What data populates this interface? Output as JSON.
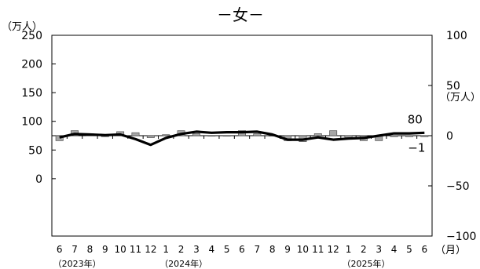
{
  "chart_data": {
    "type": "bar+line",
    "title": "－女－",
    "ylabel_left": "（万人）",
    "ylabel_right": "（万人）",
    "xunit_label": "（月）",
    "left_axis": {
      "ylim": [
        -100,
        250
      ],
      "ticks": [
        0,
        50,
        100,
        150,
        200,
        250
      ]
    },
    "right_axis": {
      "ylim": [
        -100,
        100
      ],
      "ticks": [
        -100,
        -50,
        0,
        50,
        100
      ]
    },
    "grid": false,
    "categories": [
      "6",
      "7",
      "8",
      "9",
      "10",
      "11",
      "12",
      "1",
      "2",
      "3",
      "4",
      "5",
      "6",
      "7",
      "8",
      "9",
      "10",
      "11",
      "12",
      "1",
      "2",
      "3",
      "4",
      "5",
      "6"
    ],
    "year_labels": [
      {
        "label": "（2023年）",
        "index": 0
      },
      {
        "label": "（2024年）",
        "index": 7
      },
      {
        "label": "（2025年）",
        "index": 19
      }
    ],
    "series": [
      {
        "type": "line",
        "axis": "left",
        "values": [
          72,
          78,
          77,
          76,
          77,
          69,
          59,
          71,
          78,
          82,
          80,
          81,
          81,
          82,
          77,
          68,
          68,
          72,
          68,
          70,
          71,
          75,
          79,
          79,
          80
        ]
      },
      {
        "type": "bar",
        "axis": "right",
        "values": [
          -5,
          5,
          2,
          -1,
          4,
          3,
          -2,
          1,
          5,
          2,
          0,
          0,
          5,
          2,
          0,
          -5,
          -6,
          2,
          5,
          -2,
          -5,
          -5,
          -1,
          -1,
          -1
        ]
      }
    ],
    "annotations": [
      {
        "text": "80",
        "series": 0,
        "index": 24
      },
      {
        "text": "−1",
        "series": 1,
        "index": 24
      }
    ],
    "colors": {
      "line": "#000000",
      "bar_fill": "#a6a6a6",
      "bar_stroke": "#404040",
      "axis": "#000000"
    }
  }
}
